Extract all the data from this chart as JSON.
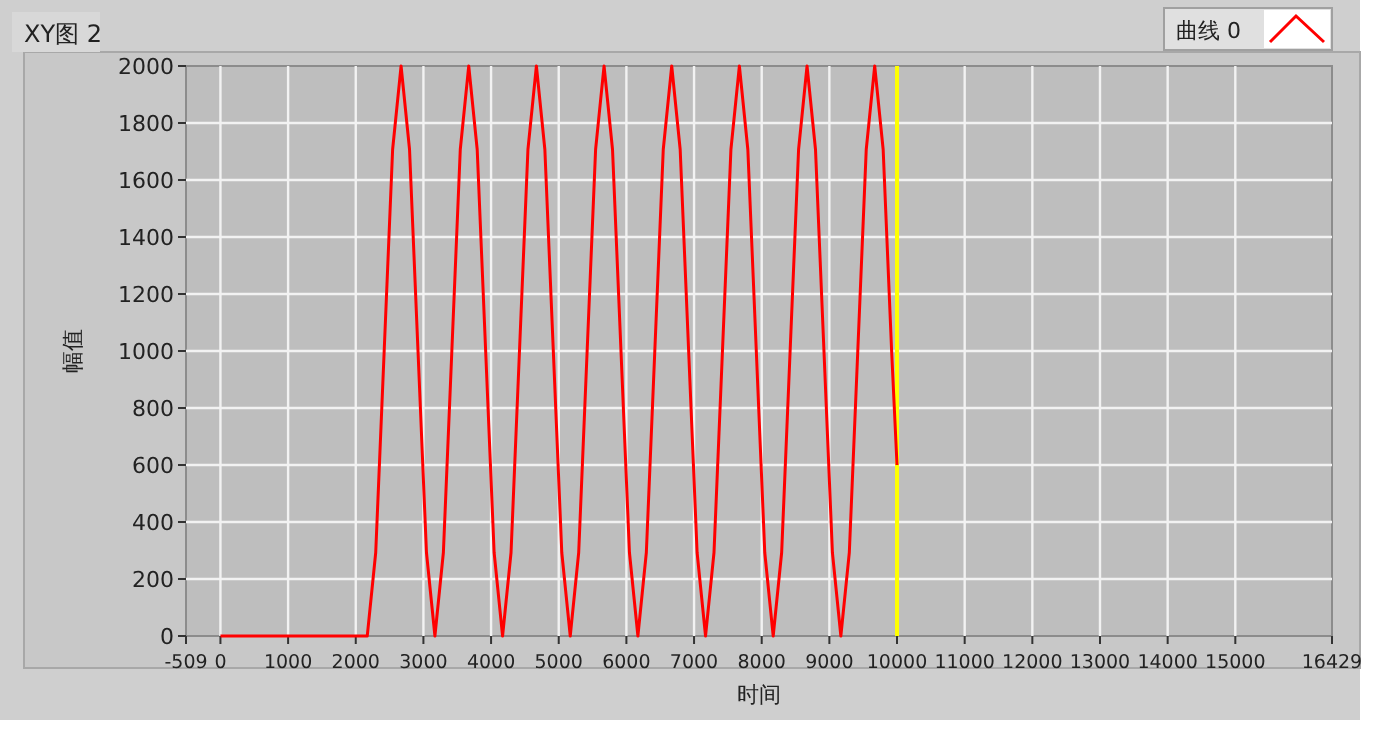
{
  "chart_data": {
    "type": "line",
    "title": "XY图 2",
    "xlabel": "时间",
    "ylabel": "幅值",
    "series": [
      {
        "name": "曲线 0",
        "color": "#ff0000",
        "x": [
          0,
          2170,
          2295,
          2420,
          2545,
          2670,
          2795,
          2920,
          3045,
          3170,
          3295,
          3420,
          3545,
          3670,
          3795,
          3920,
          4045,
          4170,
          4295,
          4420,
          4545,
          4670,
          4795,
          4920,
          5045,
          5170,
          5295,
          5420,
          5545,
          5670,
          5795,
          5920,
          6045,
          6170,
          6295,
          6420,
          6545,
          6670,
          6795,
          6920,
          7045,
          7170,
          7295,
          7420,
          7545,
          7670,
          7795,
          7920,
          8045,
          8170,
          8295,
          8420,
          8545,
          8670,
          8795,
          8920,
          9045,
          9170,
          9295,
          9420,
          9545,
          9670,
          9795,
          9920,
          10000
        ],
        "values": [
          0,
          0,
          293,
          1000,
          1707,
          2000,
          1707,
          1000,
          293,
          0,
          293,
          1000,
          1707,
          2000,
          1707,
          1000,
          293,
          0,
          293,
          1000,
          1707,
          2000,
          1707,
          1000,
          293,
          0,
          293,
          1000,
          1707,
          2000,
          1707,
          1000,
          293,
          0,
          293,
          1000,
          1707,
          2000,
          1707,
          1000,
          293,
          0,
          293,
          1000,
          1707,
          2000,
          1707,
          1000,
          293,
          0,
          293,
          1000,
          1707,
          2000,
          1707,
          1000,
          293,
          0,
          293,
          1000,
          1707,
          2000,
          1707,
          1000,
          600
        ]
      }
    ],
    "xlim": [
      -509,
      16429
    ],
    "ylim": [
      0,
      2000
    ],
    "xticks": [
      -509,
      0,
      1000,
      2000,
      3000,
      4000,
      5000,
      6000,
      7000,
      8000,
      9000,
      10000,
      11000,
      12000,
      13000,
      14000,
      15000,
      16429
    ],
    "yticks": [
      0,
      200,
      400,
      600,
      800,
      1000,
      1200,
      1400,
      1600,
      1800,
      2000
    ],
    "grid": true,
    "legend": "top right",
    "marker": "none",
    "line_style": "solid",
    "ref_lines": [
      {
        "axis": "x",
        "value": 10000,
        "color": "#ffff00"
      }
    ]
  }
}
